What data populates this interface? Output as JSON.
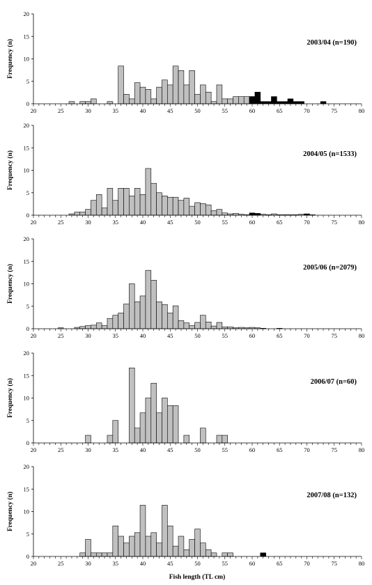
{
  "figure": {
    "xlabel": "Fish length (TL cm)",
    "ylabel": "Frequency (n)"
  },
  "chart_data": [
    {
      "type": "bar",
      "title": "2003/04 (n=190)",
      "xlabel": "",
      "ylabel": "Frequency (n)",
      "xlim": [
        20,
        80
      ],
      "ylim": [
        0,
        20
      ],
      "x_ticks": [
        20,
        25,
        30,
        35,
        40,
        45,
        50,
        55,
        60,
        65,
        70,
        75,
        80
      ],
      "y_ticks": [
        0,
        5,
        10,
        15,
        20
      ],
      "bin_width": 1,
      "series": [
        {
          "color": "#c0c0c0",
          "x": [
            27,
            29,
            30,
            31,
            34,
            36,
            37,
            38,
            39,
            40,
            41,
            42,
            43,
            44,
            45,
            46,
            47,
            48,
            49,
            50,
            51,
            52,
            53,
            54,
            55,
            56,
            57,
            58,
            59,
            60
          ],
          "values": [
            0.5,
            0.5,
            0.5,
            1.1,
            0.5,
            8.4,
            2.1,
            1.1,
            4.7,
            3.7,
            3.2,
            1.1,
            3.7,
            5.3,
            4.2,
            8.4,
            7.4,
            4.2,
            7.4,
            2.1,
            4.2,
            2.6,
            0.5,
            4.2,
            1.1,
            1.1,
            1.6,
            1.6,
            1.6,
            1.6
          ]
        },
        {
          "color": "#000000",
          "x": [
            60,
            61,
            62,
            63,
            64,
            65,
            66,
            67,
            68,
            69,
            73
          ],
          "values": [
            1.6,
            2.6,
            0.5,
            0.5,
            1.6,
            0.5,
            0.5,
            1.1,
            0.5,
            0.5,
            0.5
          ]
        }
      ]
    },
    {
      "type": "bar",
      "title": "2004/05 (n=1533)",
      "xlabel": "",
      "ylabel": "Frequency (n)",
      "xlim": [
        20,
        80
      ],
      "ylim": [
        0,
        20
      ],
      "x_ticks": [
        20,
        25,
        30,
        35,
        40,
        45,
        50,
        55,
        60,
        65,
        70,
        75,
        80
      ],
      "y_ticks": [
        0,
        5,
        10,
        15,
        20
      ],
      "bin_width": 1,
      "series": [
        {
          "color": "#c0c0c0",
          "x": [
            27,
            28,
            29,
            30,
            31,
            32,
            33,
            34,
            35,
            36,
            37,
            38,
            39,
            40,
            41,
            42,
            43,
            44,
            45,
            46,
            47,
            48,
            49,
            50,
            51,
            52,
            53,
            54,
            55,
            56,
            57,
            58,
            59,
            60,
            61,
            62,
            63,
            64,
            65,
            66,
            67,
            68,
            69,
            70,
            71
          ],
          "values": [
            0.3,
            0.7,
            0.7,
            1.3,
            3.3,
            4.6,
            1.6,
            6.0,
            3.3,
            6.0,
            6.0,
            4.3,
            6.0,
            4.6,
            10.4,
            7.1,
            5.0,
            4.3,
            4.0,
            4.0,
            3.3,
            3.8,
            2.0,
            2.8,
            2.6,
            2.3,
            1.0,
            1.3,
            0.5,
            0.3,
            0.4,
            0.2,
            0.1,
            0.1,
            0.1,
            0.2,
            0.1,
            0.3,
            0.1,
            0.1,
            0.1,
            0.1,
            0.2,
            0.1,
            0.1
          ]
        },
        {
          "color": "#000000",
          "x": [
            60,
            61,
            70
          ],
          "values": [
            0.5,
            0.4,
            0.3
          ]
        }
      ]
    },
    {
      "type": "bar",
      "title": "2005/06 (n=2079)",
      "xlabel": "",
      "ylabel": "Frequency (n)",
      "xlim": [
        20,
        80
      ],
      "ylim": [
        0,
        20
      ],
      "x_ticks": [
        20,
        25,
        30,
        35,
        40,
        45,
        50,
        55,
        60,
        65,
        70,
        75,
        80
      ],
      "y_ticks": [
        0,
        5,
        10,
        15,
        20
      ],
      "bin_width": 1,
      "series": [
        {
          "color": "#c0c0c0",
          "x": [
            25,
            28,
            29,
            30,
            31,
            32,
            33,
            34,
            35,
            36,
            37,
            38,
            39,
            40,
            41,
            42,
            43,
            44,
            45,
            46,
            47,
            48,
            49,
            50,
            51,
            52,
            53,
            54,
            55,
            56,
            57,
            58,
            59,
            60,
            61,
            62,
            65
          ],
          "values": [
            0.2,
            0.3,
            0.5,
            0.7,
            0.8,
            1.3,
            0.7,
            2.3,
            3.0,
            3.5,
            5.5,
            10.0,
            6.0,
            7.3,
            13.0,
            10.8,
            6.0,
            5.4,
            3.5,
            5.1,
            1.8,
            1.3,
            0.7,
            1.4,
            3.0,
            1.5,
            0.6,
            1.4,
            0.4,
            0.4,
            0.2,
            0.3,
            0.2,
            0.3,
            0.2,
            0.1,
            0.1
          ]
        }
      ]
    },
    {
      "type": "bar",
      "title": "2006/07 (n=60)",
      "xlabel": "",
      "ylabel": "Frequency (n)",
      "xlim": [
        20,
        80
      ],
      "ylim": [
        0,
        20
      ],
      "x_ticks": [
        20,
        25,
        30,
        35,
        40,
        45,
        50,
        55,
        60,
        65,
        70,
        75,
        80
      ],
      "y_ticks": [
        0,
        5,
        10,
        15,
        20
      ],
      "bin_width": 1,
      "series": [
        {
          "color": "#c0c0c0",
          "x": [
            30,
            34,
            35,
            38,
            39,
            40,
            41,
            42,
            43,
            44,
            45,
            46,
            48,
            51,
            54,
            55
          ],
          "values": [
            1.7,
            1.7,
            5.0,
            16.7,
            3.3,
            6.7,
            10.0,
            13.3,
            6.7,
            10.0,
            8.3,
            8.3,
            1.7,
            3.3,
            1.7,
            1.7
          ]
        }
      ]
    },
    {
      "type": "bar",
      "title": "2007/08 (n=132)",
      "xlabel": "Fish length (TL cm)",
      "ylabel": "Frequency (n)",
      "xlim": [
        20,
        80
      ],
      "ylim": [
        0,
        20
      ],
      "x_ticks": [
        20,
        25,
        30,
        35,
        40,
        45,
        50,
        55,
        60,
        65,
        70,
        75,
        80
      ],
      "y_ticks": [
        0,
        5,
        10,
        15,
        20
      ],
      "bin_width": 1,
      "series": [
        {
          "color": "#c0c0c0",
          "x": [
            29,
            30,
            31,
            32,
            33,
            34,
            35,
            36,
            37,
            38,
            39,
            40,
            41,
            42,
            43,
            44,
            45,
            46,
            47,
            48,
            49,
            50,
            51,
            52,
            53,
            55,
            56
          ],
          "values": [
            0.8,
            3.8,
            0.8,
            0.8,
            0.8,
            0.8,
            6.8,
            4.5,
            3.0,
            4.5,
            5.3,
            11.4,
            4.5,
            5.3,
            3.0,
            11.4,
            6.8,
            2.3,
            4.5,
            1.5,
            3.8,
            6.1,
            3.0,
            1.5,
            0.8,
            0.8,
            0.8
          ]
        },
        {
          "color": "#000000",
          "x": [
            62
          ],
          "values": [
            0.8
          ]
        }
      ]
    }
  ]
}
